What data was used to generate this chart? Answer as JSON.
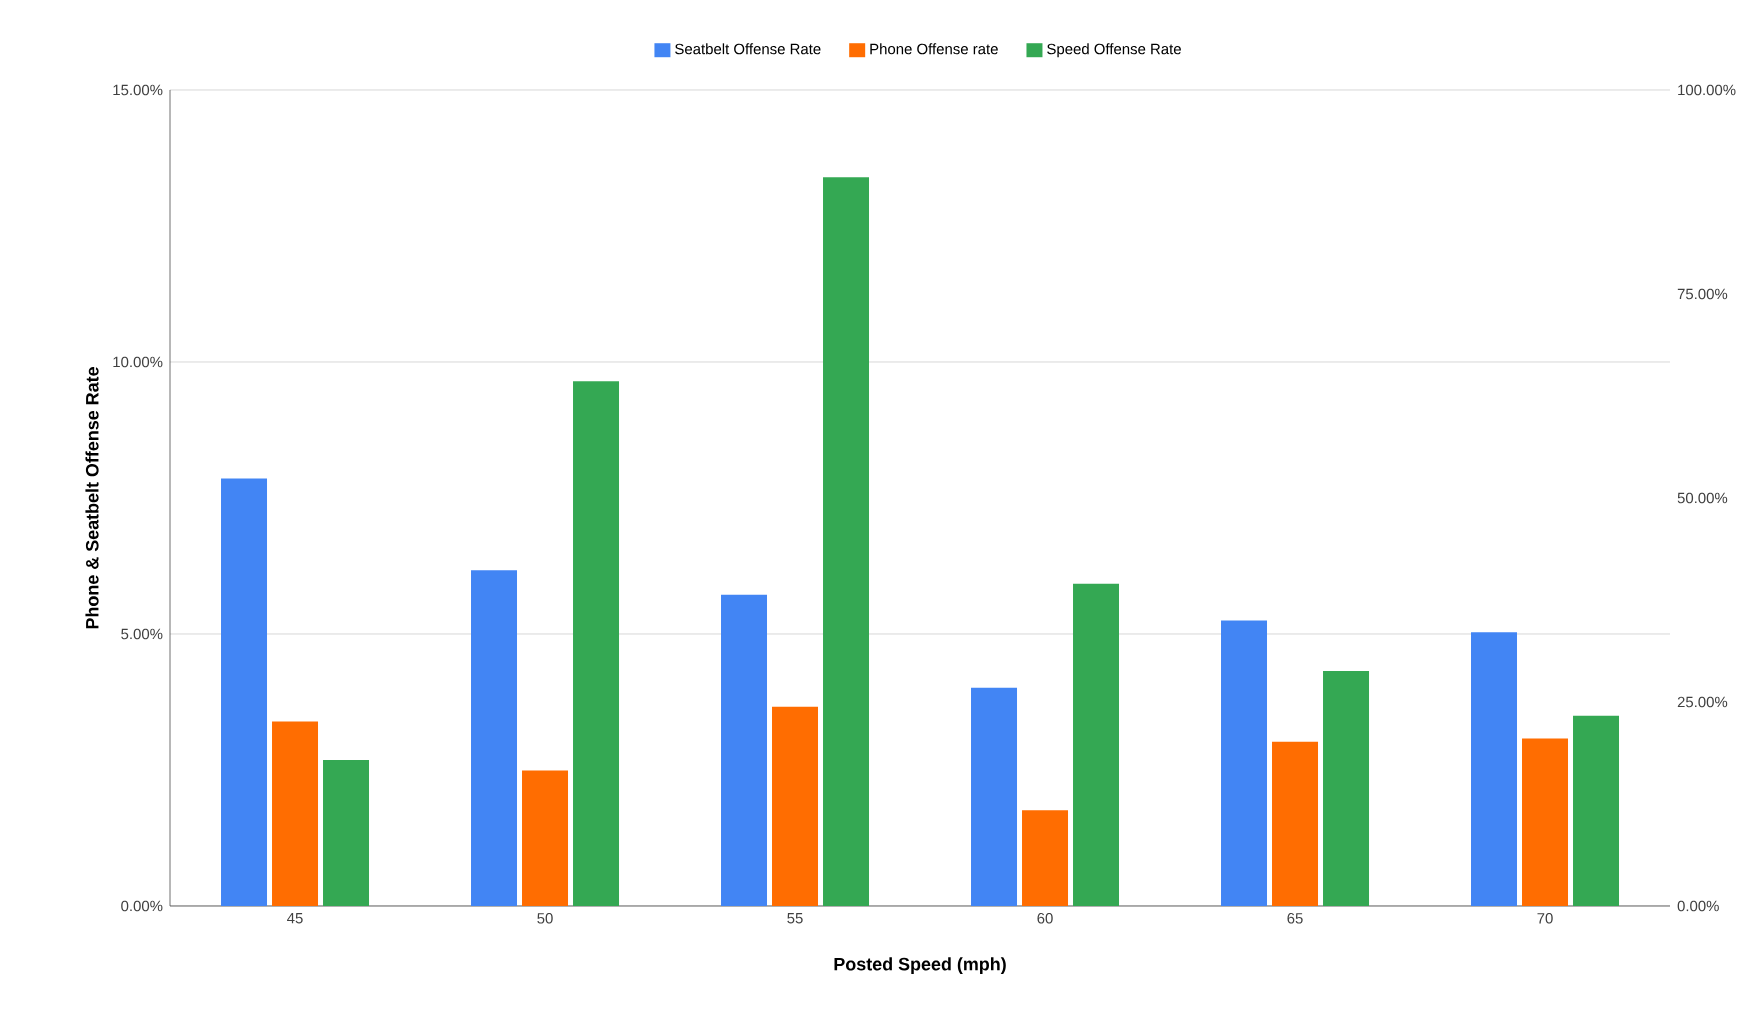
{
  "chart_data": {
    "type": "bar",
    "xlabel": "Posted Speed (mph)",
    "ylabel": "Phone & Seatbelt Offense Rate",
    "categories": [
      "45",
      "50",
      "55",
      "60",
      "65",
      "70"
    ],
    "series": [
      {
        "name": "Seatbelt Offense Rate",
        "color": "#4285f4",
        "values": [
          7.86,
          6.17,
          5.72,
          4.01,
          5.25,
          5.03
        ]
      },
      {
        "name": "Phone Offense rate",
        "color": "#ff6d01",
        "values": [
          3.39,
          2.49,
          3.66,
          1.76,
          3.02,
          3.08
        ]
      },
      {
        "name": "Speed Offense Rate",
        "color": "#34a853",
        "axis": "y2",
        "values": [
          17.9,
          64.3,
          89.3,
          39.5,
          28.8,
          23.3
        ]
      }
    ],
    "ylim": [
      0,
      15
    ],
    "yticks": [
      {
        "value": 0,
        "label": "0.00%"
      },
      {
        "value": 5,
        "label": "5.00%"
      },
      {
        "value": 10,
        "label": "10.00%"
      },
      {
        "value": 15,
        "label": "15.00%"
      }
    ],
    "y2lim": [
      0,
      100
    ],
    "y2ticks": [
      {
        "value": 0,
        "label": "0.00%"
      },
      {
        "value": 25,
        "label": "25.00%"
      },
      {
        "value": 50,
        "label": "50.00%"
      },
      {
        "value": 75,
        "label": "75.00%"
      },
      {
        "value": 100,
        "label": "100.00%"
      }
    ],
    "grid": "y",
    "legend": "top"
  }
}
